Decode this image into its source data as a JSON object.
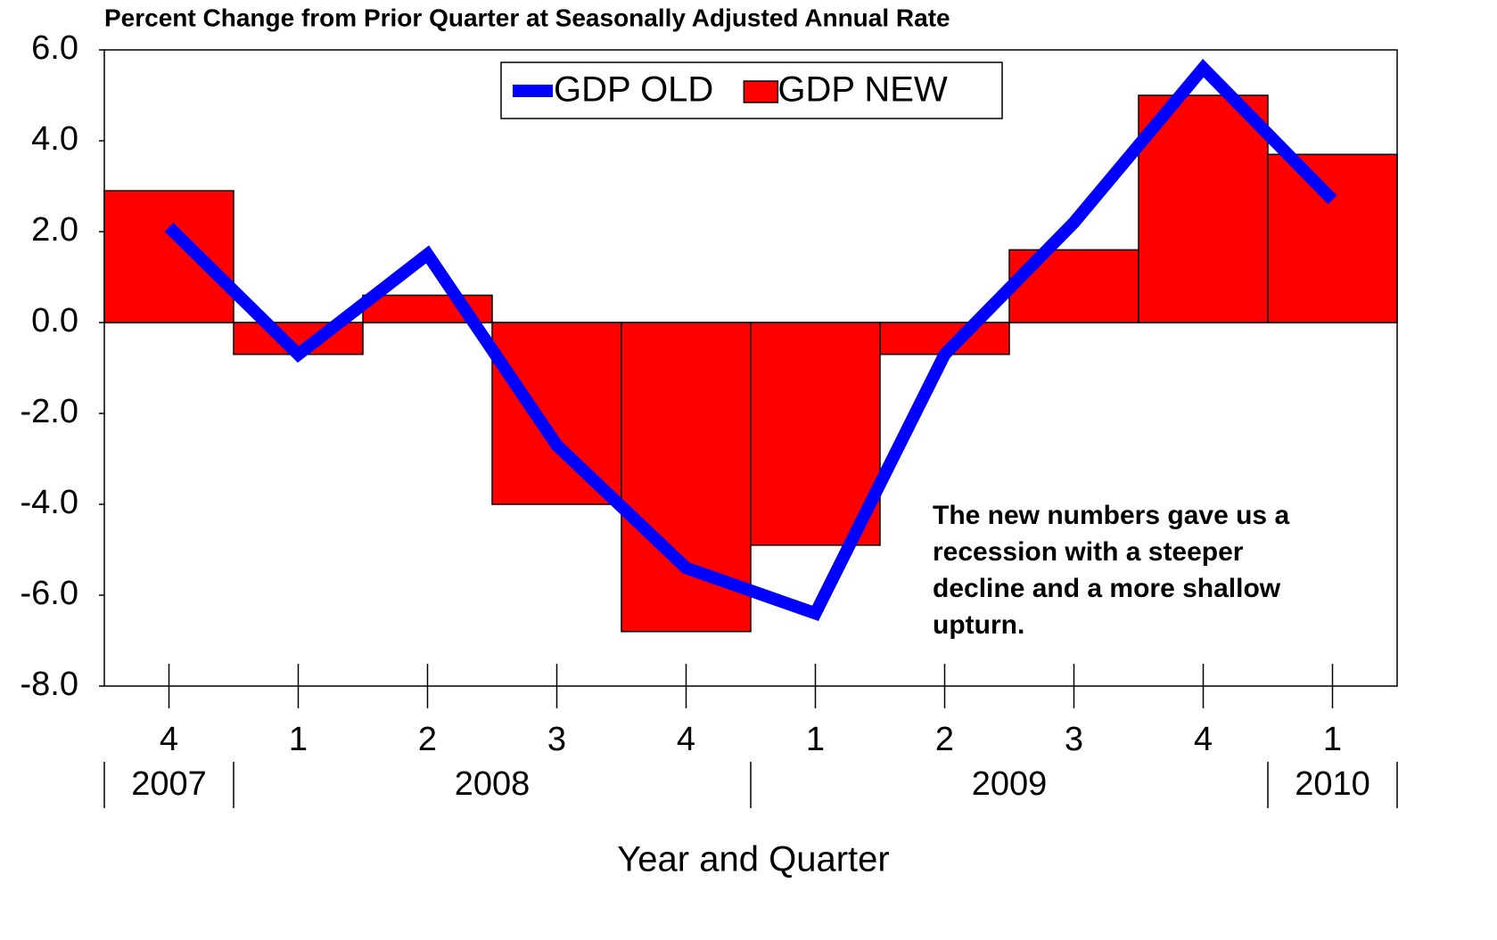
{
  "chart_data": {
    "type": "bar",
    "title": "Percent Change from Prior Quarter at Seasonally Adjusted Annual Rate",
    "x_label": "Year and Quarter",
    "categories": [
      "4",
      "1",
      "2",
      "3",
      "4",
      "1",
      "2",
      "3",
      "4",
      "1"
    ],
    "year_groups": [
      {
        "label": "2007",
        "count": 1
      },
      {
        "label": "2008",
        "count": 4
      },
      {
        "label": "2009",
        "count": 4
      },
      {
        "label": "2010",
        "count": 1
      }
    ],
    "series": [
      {
        "name": "GDP OLD",
        "type": "line",
        "color": "#0000ff",
        "values": [
          2.1,
          -0.7,
          1.5,
          -2.7,
          -5.4,
          -6.4,
          -0.7,
          2.2,
          5.6,
          2.7
        ]
      },
      {
        "name": "GDP NEW",
        "type": "bar",
        "color": "#ff0000",
        "values": [
          2.9,
          -0.7,
          0.6,
          -4.0,
          -6.8,
          -4.9,
          -0.7,
          1.6,
          5.0,
          3.7
        ]
      }
    ],
    "ylim": [
      -8,
      6
    ],
    "yticks": [
      {
        "value": -8,
        "label": "-8.0"
      },
      {
        "value": -6,
        "label": "-6.0"
      },
      {
        "value": -4,
        "label": "-4.0"
      },
      {
        "value": -2,
        "label": "-2.0"
      },
      {
        "value": 0,
        "label": "0.0"
      },
      {
        "value": 2,
        "label": "2.0"
      },
      {
        "value": 4,
        "label": "4.0"
      },
      {
        "value": 6,
        "label": "6.0"
      }
    ],
    "grid": false,
    "legend_position": "top",
    "annotation": [
      "The new numbers gave us a",
      "recession with a steeper",
      "decline and a more shallow",
      "upturn."
    ]
  }
}
